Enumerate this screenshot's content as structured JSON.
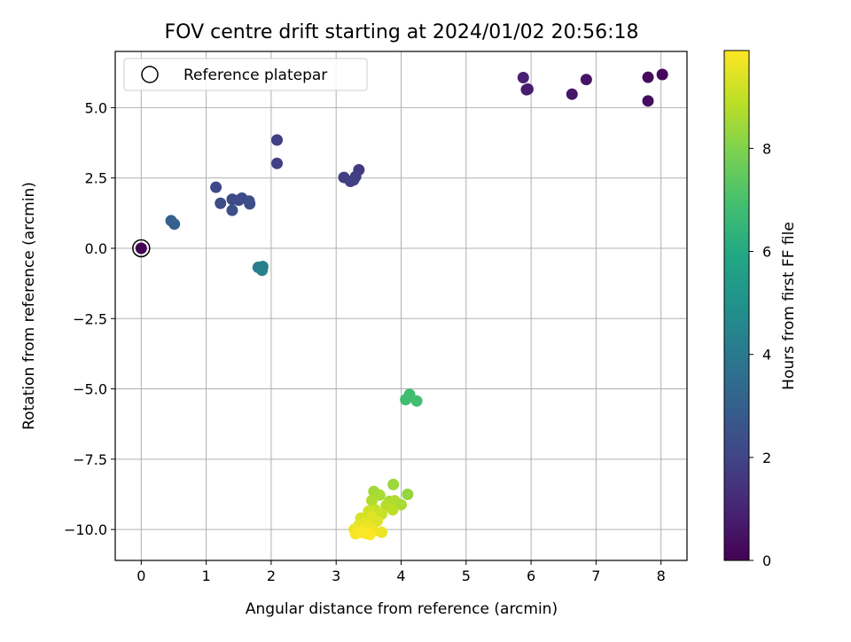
{
  "chart_data": {
    "type": "scatter",
    "title": "FOV centre drift starting at 2024/01/02 20:56:18",
    "xlabel": "Angular distance from reference (arcmin)",
    "ylabel": "Rotation from reference (arcmin)",
    "xlim": [
      -0.4,
      8.4
    ],
    "ylim": [
      -11.1,
      7.0
    ],
    "xticks": [
      0,
      1,
      2,
      3,
      4,
      5,
      6,
      7,
      8
    ],
    "yticks": [
      -10.0,
      -7.5,
      -5.0,
      -2.5,
      0.0,
      2.5,
      5.0
    ],
    "ytick_labels": [
      "−10.0",
      "−7.5",
      "−5.0",
      "−2.5",
      "0.0",
      "2.5",
      "5.0"
    ],
    "grid": true,
    "legend": {
      "placement": "top-left",
      "label": "Reference platepar",
      "marker": "hollow-circle"
    },
    "reference_point": {
      "x": 0,
      "y": 0
    },
    "colorbar": {
      "label": "Hours from first FF file",
      "colormap": "viridis",
      "range": [
        0,
        9.9
      ],
      "ticks": [
        0,
        2,
        4,
        6,
        8
      ]
    },
    "points": [
      {
        "x": 0.0,
        "y": 0.0,
        "c": 0.0
      },
      {
        "x": 8.02,
        "y": 6.18,
        "c": 0.2
      },
      {
        "x": 7.8,
        "y": 6.08,
        "c": 0.3
      },
      {
        "x": 7.8,
        "y": 5.24,
        "c": 0.35
      },
      {
        "x": 6.85,
        "y": 6.0,
        "c": 0.5
      },
      {
        "x": 6.63,
        "y": 5.48,
        "c": 0.6
      },
      {
        "x": 5.93,
        "y": 5.64,
        "c": 0.75
      },
      {
        "x": 5.95,
        "y": 5.66,
        "c": 0.8
      },
      {
        "x": 5.88,
        "y": 6.07,
        "c": 0.9
      },
      {
        "x": 2.09,
        "y": 3.85,
        "c": 1.8
      },
      {
        "x": 2.09,
        "y": 3.02,
        "c": 1.85
      },
      {
        "x": 3.35,
        "y": 2.79,
        "c": 1.7
      },
      {
        "x": 3.12,
        "y": 2.52,
        "c": 1.75
      },
      {
        "x": 3.3,
        "y": 2.55,
        "c": 1.8
      },
      {
        "x": 3.22,
        "y": 2.38,
        "c": 1.85
      },
      {
        "x": 3.27,
        "y": 2.43,
        "c": 1.85
      },
      {
        "x": 1.15,
        "y": 2.17,
        "c": 2.1
      },
      {
        "x": 1.4,
        "y": 1.74,
        "c": 2.2
      },
      {
        "x": 1.55,
        "y": 1.78,
        "c": 2.2
      },
      {
        "x": 1.5,
        "y": 1.71,
        "c": 2.25
      },
      {
        "x": 1.66,
        "y": 1.68,
        "c": 2.3
      },
      {
        "x": 1.67,
        "y": 1.58,
        "c": 2.35
      },
      {
        "x": 1.22,
        "y": 1.6,
        "c": 2.3
      },
      {
        "x": 1.4,
        "y": 1.35,
        "c": 2.4
      },
      {
        "x": 0.46,
        "y": 0.98,
        "c": 3.0
      },
      {
        "x": 0.51,
        "y": 0.86,
        "c": 3.05
      },
      {
        "x": 1.8,
        "y": -0.68,
        "c": 4.2
      },
      {
        "x": 1.87,
        "y": -0.65,
        "c": 4.25
      },
      {
        "x": 1.86,
        "y": -0.78,
        "c": 4.3
      },
      {
        "x": 4.13,
        "y": -5.2,
        "c": 6.8
      },
      {
        "x": 4.07,
        "y": -5.38,
        "c": 6.85
      },
      {
        "x": 4.24,
        "y": -5.43,
        "c": 6.9
      },
      {
        "x": 3.88,
        "y": -8.4,
        "c": 8.4
      },
      {
        "x": 4.1,
        "y": -8.75,
        "c": 8.3
      },
      {
        "x": 3.58,
        "y": -8.65,
        "c": 8.5
      },
      {
        "x": 3.67,
        "y": -8.78,
        "c": 8.6
      },
      {
        "x": 3.55,
        "y": -8.97,
        "c": 8.7
      },
      {
        "x": 3.82,
        "y": -9.0,
        "c": 8.6
      },
      {
        "x": 3.9,
        "y": -8.98,
        "c": 8.7
      },
      {
        "x": 4.0,
        "y": -9.12,
        "c": 8.6
      },
      {
        "x": 3.77,
        "y": -9.15,
        "c": 8.8
      },
      {
        "x": 3.87,
        "y": -9.3,
        "c": 8.9
      },
      {
        "x": 3.6,
        "y": -9.3,
        "c": 9.0
      },
      {
        "x": 3.7,
        "y": -9.45,
        "c": 9.1
      },
      {
        "x": 3.5,
        "y": -9.35,
        "c": 9.2
      },
      {
        "x": 3.38,
        "y": -9.6,
        "c": 9.3
      },
      {
        "x": 3.55,
        "y": -9.55,
        "c": 9.4
      },
      {
        "x": 3.63,
        "y": -9.7,
        "c": 9.4
      },
      {
        "x": 3.45,
        "y": -9.75,
        "c": 9.5
      },
      {
        "x": 3.35,
        "y": -9.85,
        "c": 9.5
      },
      {
        "x": 3.5,
        "y": -9.9,
        "c": 9.6
      },
      {
        "x": 3.28,
        "y": -10.0,
        "c": 9.6
      },
      {
        "x": 3.42,
        "y": -10.0,
        "c": 9.7
      },
      {
        "x": 3.57,
        "y": -10.05,
        "c": 9.7
      },
      {
        "x": 3.7,
        "y": -10.1,
        "c": 9.6
      },
      {
        "x": 3.3,
        "y": -10.15,
        "c": 9.8
      },
      {
        "x": 3.47,
        "y": -10.15,
        "c": 9.8
      },
      {
        "x": 3.39,
        "y": -10.1,
        "c": 9.85
      },
      {
        "x": 3.52,
        "y": -10.18,
        "c": 9.9
      }
    ]
  }
}
